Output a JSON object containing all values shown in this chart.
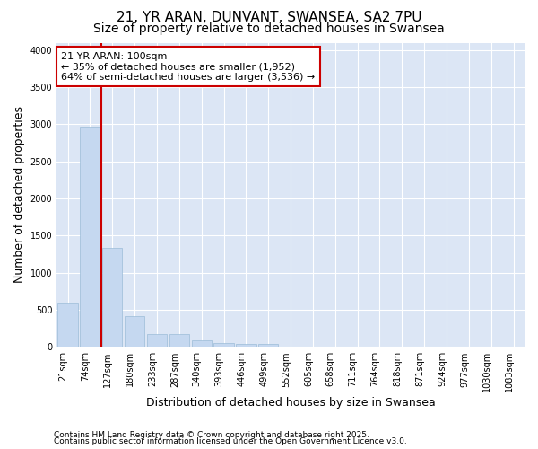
{
  "title1": "21, YR ARAN, DUNVANT, SWANSEA, SA2 7PU",
  "title2": "Size of property relative to detached houses in Swansea",
  "xlabel": "Distribution of detached houses by size in Swansea",
  "ylabel": "Number of detached properties",
  "categories": [
    "21sqm",
    "74sqm",
    "127sqm",
    "180sqm",
    "233sqm",
    "287sqm",
    "340sqm",
    "393sqm",
    "446sqm",
    "499sqm",
    "552sqm",
    "605sqm",
    "658sqm",
    "711sqm",
    "764sqm",
    "818sqm",
    "871sqm",
    "924sqm",
    "977sqm",
    "1030sqm",
    "1083sqm"
  ],
  "values": [
    600,
    2970,
    1330,
    420,
    175,
    175,
    85,
    55,
    45,
    45,
    0,
    0,
    0,
    0,
    0,
    0,
    0,
    0,
    0,
    0,
    0
  ],
  "bar_color": "#c5d8f0",
  "bar_edge_color": "#9bbcd8",
  "vline_color": "#cc0000",
  "vline_x": 1.5,
  "annotation_box_text": "21 YR ARAN: 100sqm\n← 35% of detached houses are smaller (1,952)\n64% of semi-detached houses are larger (3,536) →",
  "annotation_box_color": "#cc0000",
  "footnote1": "Contains HM Land Registry data © Crown copyright and database right 2025.",
  "footnote2": "Contains public sector information licensed under the Open Government Licence v3.0.",
  "ylim": [
    0,
    4100
  ],
  "yticks": [
    0,
    500,
    1000,
    1500,
    2000,
    2500,
    3000,
    3500,
    4000
  ],
  "fig_bg_color": "#ffffff",
  "plot_bg_color": "#dce6f5",
  "grid_color": "#ffffff",
  "title_fontsize": 11,
  "subtitle_fontsize": 10,
  "tick_fontsize": 7,
  "label_fontsize": 9,
  "annot_fontsize": 8,
  "footnote_fontsize": 6.5
}
